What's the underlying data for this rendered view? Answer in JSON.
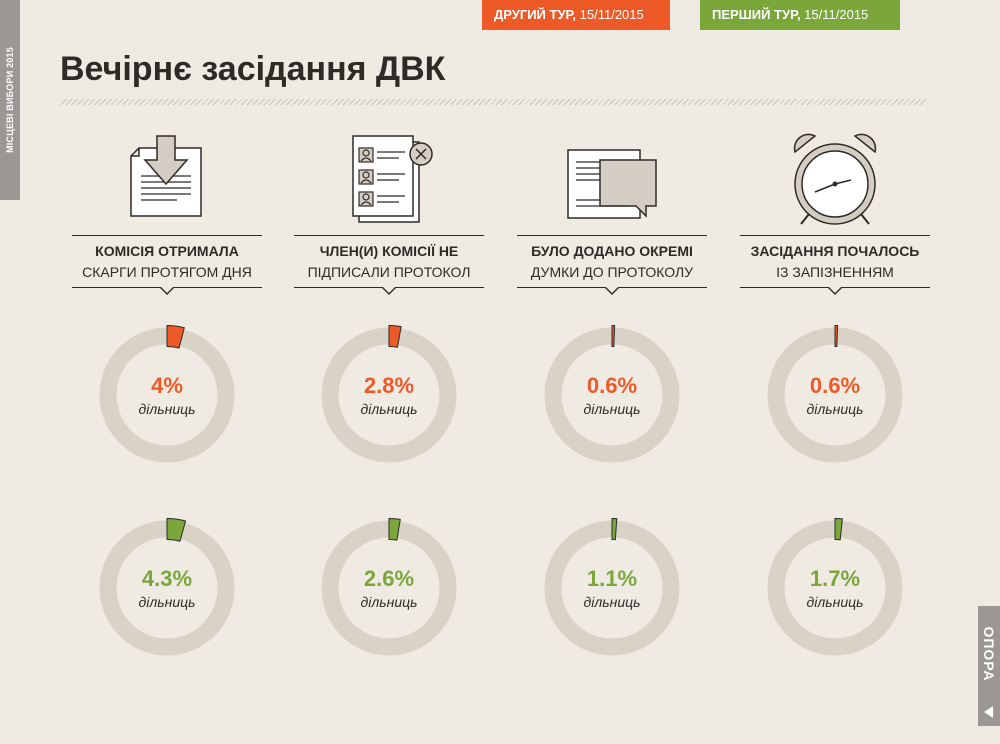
{
  "side_label": "МІСЦЕВІ ВИБОРИ 2015",
  "tags": {
    "second": {
      "bold": "ДРУГИЙ ТУР,",
      "date": " 15/11/2015",
      "color": "#ed5a28"
    },
    "first": {
      "bold": "ПЕРШИЙ ТУР,",
      "date": " 15/11/2015",
      "color": "#7aa63a"
    }
  },
  "title": "Вечірнє засідання ДВК",
  "logo": "ОПОРА",
  "columns": [
    {
      "icon": "document-download-icon",
      "bold": "КОМІСІЯ ОТРИМАЛА",
      "light": "СКАРГИ ПРОТЯГОМ ДНЯ"
    },
    {
      "icon": "unsigned-list-icon",
      "bold": "ЧЛЕН(И) КОМІСІЇ НЕ",
      "light": "ПІДПИСАЛИ ПРОТОКОЛ"
    },
    {
      "icon": "document-comments-icon",
      "bold": "БУЛО ДОДАНО ОКРЕМІ",
      "light": "ДУМКИ ДО ПРОТОКОЛУ"
    },
    {
      "icon": "alarm-clock-icon",
      "bold": "ЗАСІДАННЯ ПОЧАЛОСЬ",
      "light": "ІЗ ЗАПІЗНЕННЯМ"
    }
  ],
  "chart_data": {
    "type": "donut",
    "unit_label": "дільниць",
    "categories": [
      "КОМІСІЯ ОТРИМАЛА СКАРГИ ПРОТЯГОМ ДНЯ",
      "ЧЛЕН(И) КОМІСІЇ НЕ ПІДПИСАЛИ ПРОТОКОЛ",
      "БУЛО ДОДАНО ОКРЕМІ ДУМКИ ДО ПРОТОКОЛУ",
      "ЗАСІДАННЯ ПОЧАЛОСЬ ІЗ ЗАПІЗНЕННЯМ"
    ],
    "series": [
      {
        "name": "ДРУГИЙ ТУР, 15/11/2015",
        "color": "#ed5a28",
        "values": [
          4,
          2.8,
          0.6,
          0.6
        ],
        "labels": [
          "4%",
          "2.8%",
          "0.6%",
          "0.6%"
        ]
      },
      {
        "name": "ПЕРШИЙ ТУР, 15/11/2015",
        "color": "#7aa63a",
        "values": [
          4.3,
          2.6,
          1.1,
          1.7
        ],
        "labels": [
          "4.3%",
          "2.6%",
          "1.1%",
          "1.7%"
        ]
      }
    ],
    "ring_color": "#d8d2c7"
  }
}
